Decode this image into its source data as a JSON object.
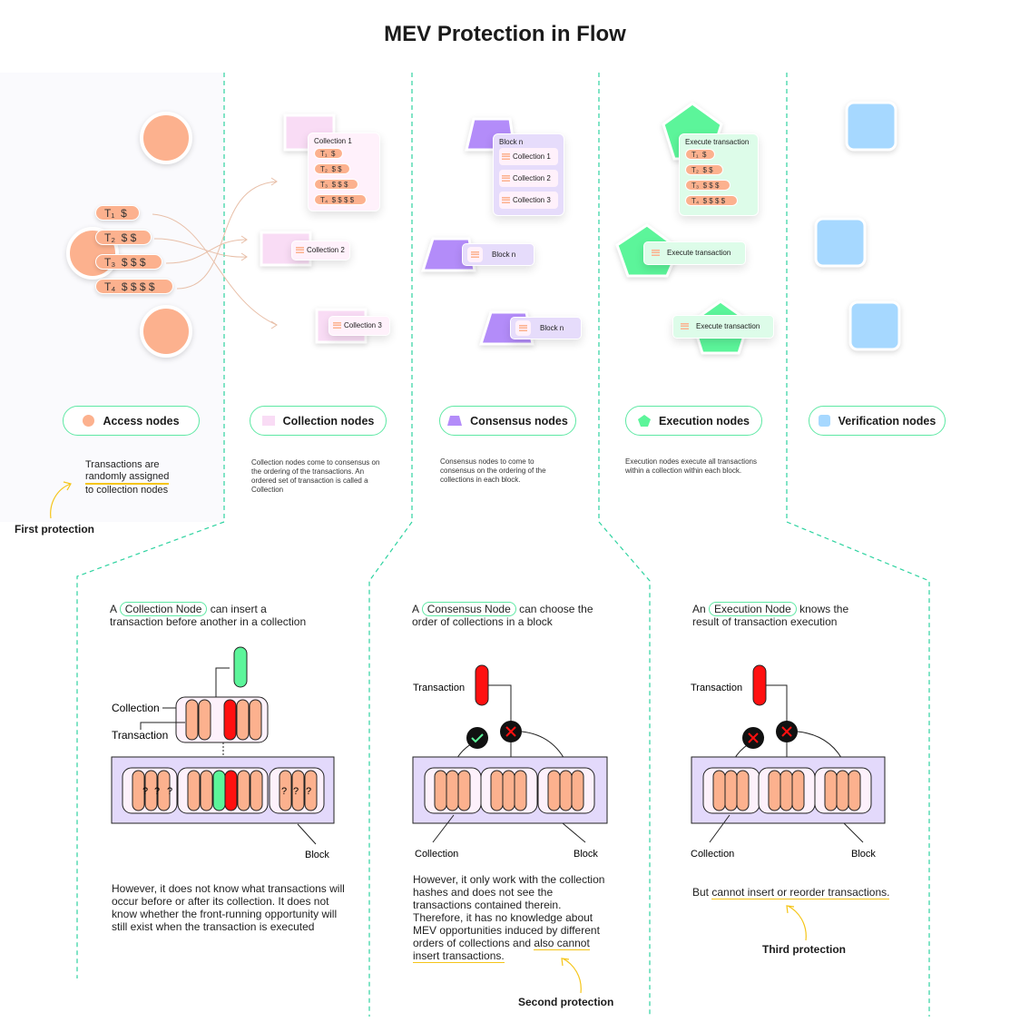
{
  "title": "MEV Protection in Flow",
  "colors": {
    "access": "#fcb18e",
    "collection": "#f9dcf5",
    "consensus": "#b38cf9",
    "execution": "#5cf59a",
    "verification": "#a6d8ff",
    "divider": "#2ed3a0",
    "highlight": "#f5c518",
    "red": "#ff1010"
  },
  "access": {
    "transactions": [
      {
        "label": "T₁",
        "value": "$"
      },
      {
        "label": "T₂",
        "value": "$ $"
      },
      {
        "label": "T₃",
        "value": "$ $ $"
      },
      {
        "label": "T₄",
        "value": "$ $ $ $"
      }
    ]
  },
  "collection": {
    "card_title": "Collection 1",
    "tag2": "Collection 2",
    "tag3": "Collection 3"
  },
  "consensus": {
    "card_title": "Block n",
    "items": [
      "Collection 1",
      "Collection 2",
      "Collection 3"
    ],
    "tag": "Block n"
  },
  "execution": {
    "card_title": "Execute transaction",
    "tag": "Execute transaction"
  },
  "legend": [
    {
      "label": "Access nodes",
      "icon": "circle-icon"
    },
    {
      "label": "Collection nodes",
      "icon": "square-icon"
    },
    {
      "label": "Consensus nodes",
      "icon": "trapezoid-icon"
    },
    {
      "label": "Execution nodes",
      "icon": "pentagon-icon"
    },
    {
      "label": "Verification nodes",
      "icon": "rounded-square-icon"
    }
  ],
  "descriptions": {
    "access": {
      "line1": "Transactions are",
      "line2": "randomly assigned",
      "line3": "to collection nodes"
    },
    "collection": "Collection nodes come to consensus on the ordering of the transactions. An ordered set of transaction is called a Collection",
    "consensus": "Consensus nodes to come to consensus on the ordering of the collections in each block.",
    "execution": "Execution nodes execute all transactions within a collection within each block."
  },
  "first_protection": "First protection",
  "panel1": {
    "intro_a": "A",
    "node": "Collection Node",
    "intro_b": "can insert a",
    "intro_c": "transaction before another in a collection",
    "label_collection": "Collection",
    "label_transaction": "Transaction",
    "label_block": "Block",
    "unknown": "?",
    "body": "However, it does not know what transactions will occur before or after its collection. It does not know whether the front-running opportunity will still exist when the transaction is executed"
  },
  "panel2": {
    "intro_a": "A",
    "node": "Consensus Node",
    "intro_b": "can choose the",
    "intro_c": "order of collections in a block",
    "label_transaction": "Transaction",
    "label_collection": "Collection",
    "label_block": "Block",
    "body": "However, it only work with the collection hashes and does not see the transactions contained therein. Therefore, it has no knowledge about MEV opportunities induced by different orders of collections and",
    "body_underlined": "also cannot insert transactions.",
    "protection": "Second protection"
  },
  "panel3": {
    "intro_a": "An",
    "node": "Execution Node",
    "intro_b": "knows the",
    "intro_c": "result of transaction execution",
    "label_transaction": "Transaction",
    "label_collection": "Collection",
    "label_block": "Block",
    "body_a": "But",
    "body_underlined": "cannot insert or reorder transactions.",
    "protection": "Third protection"
  }
}
